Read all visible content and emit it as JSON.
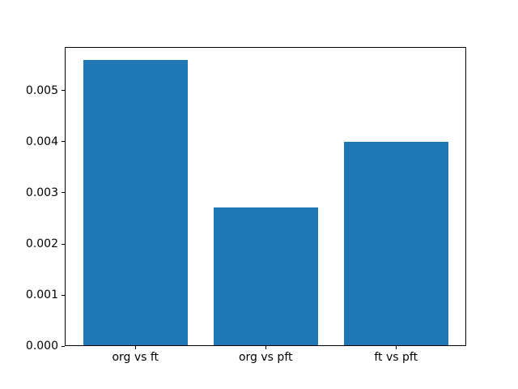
{
  "figure": {
    "background": "#ffffff"
  },
  "chart_data": {
    "type": "bar",
    "title": "",
    "xlabel": "",
    "ylabel": "",
    "categories": [
      "org vs ft",
      "org vs pft",
      "ft vs pft"
    ],
    "values": [
      0.00558,
      0.0027,
      0.00398
    ],
    "bar_color": "#1f77b4",
    "yticks": [
      0.0,
      0.001,
      0.002,
      0.003,
      0.004,
      0.005
    ],
    "ytick_labels": [
      "0.000",
      "0.001",
      "0.002",
      "0.003",
      "0.004",
      "0.005"
    ],
    "ylim": [
      0,
      0.005859
    ],
    "xlim": [
      -0.542,
      2.539
    ],
    "bar_width_units": 0.8,
    "grid": false,
    "legend": null,
    "frame_color": "#000000",
    "text_color": "#000000"
  }
}
